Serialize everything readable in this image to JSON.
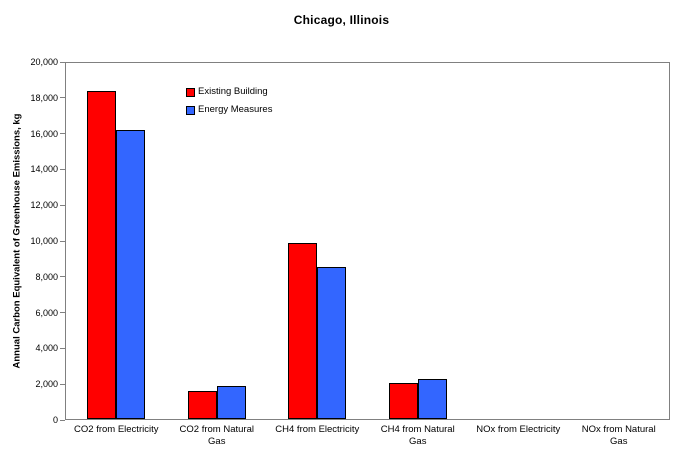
{
  "page": {
    "background": "#FFFFFF",
    "text_color": "#000000",
    "axis_color": "#808080",
    "bar_border_color": "#000000"
  },
  "chart_data": {
    "type": "bar",
    "title": "Chicago, Illinois",
    "xlabel": "",
    "ylabel": "Annual Carbon Equivalent of Greenhouse Emissions, kg",
    "ylim": [
      0,
      20000
    ],
    "ytick_step": 2000,
    "ytick_labels": [
      "0",
      "2,000",
      "4,000",
      "6,000",
      "8,000",
      "10,000",
      "12,000",
      "14,000",
      "16,000",
      "18,000",
      "20,000"
    ],
    "grid": false,
    "legend_position": "inside-top-left",
    "categories": [
      "CO2 from Electricity",
      "CO2 from Natural Gas",
      "CH4 from Electricity",
      "CH4 from Natural Gas",
      "NOx from Electricity",
      "NOx from Natural Gas"
    ],
    "category_label_lines": [
      [
        "CO2 from Electricity"
      ],
      [
        "CO2 from Natural",
        "Gas"
      ],
      [
        "CH4 from Electricity"
      ],
      [
        "CH4 from Natural",
        "Gas"
      ],
      [
        "NOx from Electricity"
      ],
      [
        "NOx from Natural",
        "Gas"
      ]
    ],
    "series": [
      {
        "name": "Existing Building",
        "color": "#FF0000",
        "values": [
          18450,
          1600,
          9900,
          2050,
          0,
          0
        ]
      },
      {
        "name": "Energy Measures",
        "color": "#3366FF",
        "values": [
          16250,
          1850,
          8550,
          2250,
          0,
          0
        ]
      }
    ]
  }
}
